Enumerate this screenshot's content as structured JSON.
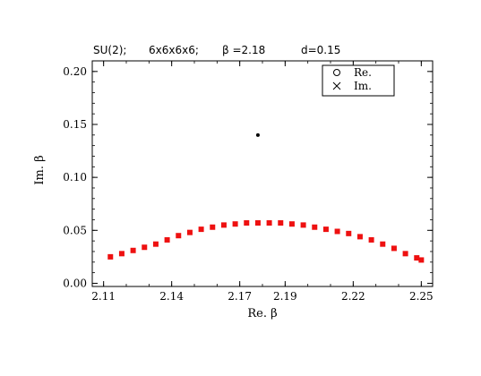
{
  "chart_data": {
    "type": "scatter",
    "title_parts": [
      "SU(2);",
      "6x6x6x6;",
      "β =2.18",
      "d=0.15"
    ],
    "xlabel": "Re. β",
    "ylabel": "Im. β",
    "xlim": [
      2.105,
      2.255
    ],
    "ylim": [
      -0.003,
      0.21
    ],
    "xticks": [
      "2.11",
      "2.14",
      "2.17",
      "2.19",
      "2.22",
      "2.25"
    ],
    "xtick_values": [
      2.11,
      2.14,
      2.17,
      2.19,
      2.22,
      2.25
    ],
    "yticks": [
      "0.00",
      "0.05",
      "0.10",
      "0.15",
      "0.20"
    ],
    "ytick_values": [
      0.0,
      0.05,
      0.1,
      0.15,
      0.2
    ],
    "legend": {
      "placement": "top-right",
      "entries": [
        {
          "marker": "circle",
          "label": "Re."
        },
        {
          "marker": "cross",
          "label": "Im."
        }
      ]
    },
    "colors": {
      "blue": "#1010d0",
      "green": "#22dd22",
      "red": "#ee1111",
      "black": "#000000"
    },
    "series": [
      {
        "color": "red",
        "marker": "square",
        "x": [
          2.113,
          2.118,
          2.123,
          2.128,
          2.133,
          2.138,
          2.143,
          2.148,
          2.153,
          2.158,
          2.163,
          2.168,
          2.173,
          2.178,
          2.183,
          2.188,
          2.193,
          2.198,
          2.203,
          2.208,
          2.213,
          2.218,
          2.223,
          2.228,
          2.233,
          2.238,
          2.243,
          2.248,
          2.25
        ],
        "y": [
          0.025,
          0.028,
          0.031,
          0.034,
          0.037,
          0.041,
          0.045,
          0.048,
          0.051,
          0.053,
          0.055,
          0.056,
          0.057,
          0.057,
          0.057,
          0.057,
          0.056,
          0.055,
          0.053,
          0.051,
          0.049,
          0.047,
          0.044,
          0.041,
          0.037,
          0.033,
          0.028,
          0.024,
          0.022
        ]
      },
      {
        "color": "black",
        "marker": "point",
        "x": [
          2.178
        ],
        "y": [
          0.14
        ]
      }
    ]
  }
}
